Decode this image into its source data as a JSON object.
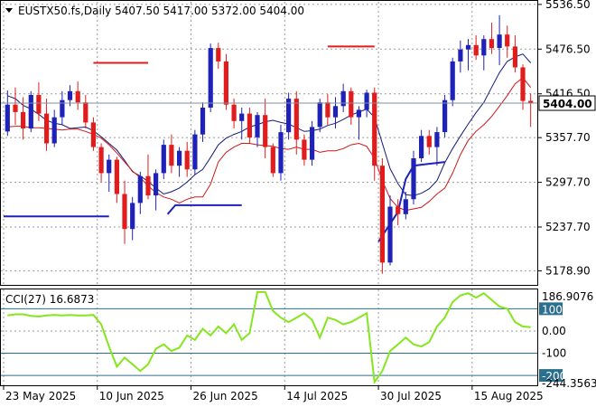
{
  "header": {
    "symbol_line": "EUSTX50.fs,Daily  5407.50 5417.00 5372.00 5404.00"
  },
  "indicator": {
    "label": "CCI(27) 16.6873"
  },
  "colors": {
    "bull": "#1e22b8",
    "bear": "#e11c1c",
    "ma_fast": "#141a7a",
    "ma_slow": "#d01818",
    "cci": "#84e61c",
    "level_line": "#2b6f8f",
    "grid": "#9a9a9a",
    "resistance": "#e11c1c",
    "support": "#1e22b8"
  },
  "chart_data": [
    {
      "type": "candlestick",
      "title": "EUSTX50.fs,Daily",
      "ylim": [
        5160,
        5540
      ],
      "y_ticks": [
        "5536.50",
        "5476.50",
        "5416.50",
        "5357.70",
        "5297.70",
        "5237.70",
        "5178.90"
      ],
      "y_tick_values": [
        5536.5,
        5476.5,
        5416.5,
        5357.7,
        5297.7,
        5237.7,
        5178.9
      ],
      "current_price": "5404.00",
      "current_price_value": 5404,
      "x_tick_labels": [
        {
          "index": 0,
          "label": "23 May 2025"
        },
        {
          "index": 12,
          "label": "10 Jun 2025"
        },
        {
          "index": 24,
          "label": "26 Jun 2025"
        },
        {
          "index": 36,
          "label": "14 Jul 2025"
        },
        {
          "index": 48,
          "label": "30 Jul 2025"
        },
        {
          "index": 60,
          "label": "15 Aug 2025"
        }
      ],
      "ohlc": [
        [
          5366,
          5421,
          5360,
          5402
        ],
        [
          5402,
          5425,
          5375,
          5392
        ],
        [
          5392,
          5412,
          5355,
          5370
        ],
        [
          5370,
          5420,
          5365,
          5415
        ],
        [
          5415,
          5432,
          5380,
          5390
        ],
        [
          5390,
          5410,
          5340,
          5350
        ],
        [
          5350,
          5395,
          5345,
          5385
        ],
        [
          5385,
          5420,
          5375,
          5408
        ],
        [
          5408,
          5428,
          5400,
          5420
        ],
        [
          5420,
          5433,
          5395,
          5405
        ],
        [
          5405,
          5415,
          5370,
          5378
        ],
        [
          5378,
          5385,
          5340,
          5345
        ],
        [
          5345,
          5350,
          5298,
          5310
        ],
        [
          5310,
          5335,
          5285,
          5328
        ],
        [
          5328,
          5332,
          5270,
          5282
        ],
        [
          5282,
          5300,
          5215,
          5235
        ],
        [
          5235,
          5278,
          5220,
          5270
        ],
        [
          5270,
          5312,
          5255,
          5306
        ],
        [
          5306,
          5335,
          5275,
          5280
        ],
        [
          5280,
          5315,
          5260,
          5310
        ],
        [
          5310,
          5355,
          5302,
          5348
        ],
        [
          5348,
          5362,
          5310,
          5320
        ],
        [
          5320,
          5345,
          5305,
          5340
        ],
        [
          5340,
          5352,
          5305,
          5315
        ],
        [
          5315,
          5368,
          5308,
          5362
        ],
        [
          5362,
          5405,
          5352,
          5398
        ],
        [
          5398,
          5484,
          5392,
          5478
        ],
        [
          5478,
          5485,
          5450,
          5460
        ],
        [
          5460,
          5470,
          5395,
          5402
        ],
        [
          5402,
          5410,
          5370,
          5380
        ],
        [
          5380,
          5398,
          5355,
          5390
        ],
        [
          5390,
          5398,
          5350,
          5358
        ],
        [
          5358,
          5392,
          5345,
          5388
        ],
        [
          5388,
          5410,
          5330,
          5345
        ],
        [
          5345,
          5350,
          5305,
          5310
        ],
        [
          5310,
          5375,
          5300,
          5365
        ],
        [
          5365,
          5418,
          5355,
          5410
        ],
        [
          5410,
          5420,
          5335,
          5355
        ],
        [
          5355,
          5362,
          5320,
          5328
        ],
        [
          5328,
          5380,
          5320,
          5372
        ],
        [
          5372,
          5410,
          5365,
          5405
        ],
        [
          5405,
          5416,
          5375,
          5385
        ],
        [
          5385,
          5412,
          5370,
          5400
        ],
        [
          5400,
          5430,
          5392,
          5420
        ],
        [
          5420,
          5425,
          5375,
          5385
        ],
        [
          5385,
          5400,
          5355,
          5395
        ],
        [
          5395,
          5422,
          5385,
          5418
        ],
        [
          5418,
          5425,
          5300,
          5320
        ],
        [
          5320,
          5330,
          5175,
          5190
        ],
        [
          5190,
          5280,
          5186,
          5265
        ],
        [
          5265,
          5275,
          5240,
          5255
        ],
        [
          5255,
          5285,
          5248,
          5275
        ],
        [
          5275,
          5340,
          5268,
          5330
        ],
        [
          5330,
          5368,
          5325,
          5360
        ],
        [
          5360,
          5368,
          5335,
          5345
        ],
        [
          5345,
          5372,
          5320,
          5365
        ],
        [
          5365,
          5415,
          5358,
          5408
        ],
        [
          5408,
          5465,
          5400,
          5460
        ],
        [
          5460,
          5488,
          5445,
          5476
        ],
        [
          5476,
          5490,
          5448,
          5482
        ],
        [
          5482,
          5495,
          5462,
          5468
        ],
        [
          5468,
          5495,
          5448,
          5490
        ],
        [
          5490,
          5512,
          5470,
          5478
        ],
        [
          5478,
          5522,
          5455,
          5496
        ],
        [
          5496,
          5508,
          5465,
          5480
        ],
        [
          5480,
          5495,
          5445,
          5452
        ],
        [
          5452,
          5456,
          5395,
          5407
        ],
        [
          5407,
          5417,
          5372,
          5404
        ]
      ],
      "moving_averages": [
        {
          "color_key": "ma_fast",
          "values": [
            5414,
            5410,
            5401,
            5396,
            5389,
            5381,
            5377,
            5375,
            5370,
            5371,
            5372,
            5367,
            5359,
            5350,
            5341,
            5327,
            5312,
            5306,
            5299,
            5290,
            5282,
            5285,
            5290,
            5298,
            5308,
            5315,
            5331,
            5348,
            5357,
            5362,
            5366,
            5372,
            5375,
            5379,
            5381,
            5378,
            5376,
            5371,
            5366,
            5367,
            5369,
            5374,
            5377,
            5382,
            5388,
            5392,
            5396,
            5385,
            5350,
            5316,
            5296,
            5281,
            5280,
            5283,
            5289,
            5300,
            5324,
            5343,
            5360,
            5376,
            5391,
            5405,
            5425,
            5445,
            5460,
            5466,
            5470,
            5458
          ]
        },
        {
          "color_key": "ma_slow",
          "values": [
            5372,
            5373,
            5373,
            5371,
            5371,
            5370,
            5369,
            5368,
            5369,
            5369,
            5366,
            5362,
            5357,
            5348,
            5337,
            5325,
            5313,
            5304,
            5293,
            5284,
            5278,
            5275,
            5270,
            5275,
            5278,
            5278,
            5295,
            5325,
            5338,
            5345,
            5350,
            5350,
            5348,
            5347,
            5346,
            5343,
            5342,
            5345,
            5342,
            5342,
            5338,
            5340,
            5340,
            5343,
            5348,
            5350,
            5346,
            5330,
            5300,
            5276,
            5264,
            5260,
            5262,
            5264,
            5272,
            5282,
            5290,
            5310,
            5335,
            5354,
            5366,
            5375,
            5386,
            5400,
            5414,
            5430,
            5438,
            5425
          ]
        }
      ],
      "resistance_segments": [
        {
          "from": 11,
          "to": 18,
          "value": 5458
        },
        {
          "from": 41,
          "to": 47,
          "value": 5480
        }
      ],
      "support_segments": [
        {
          "points": [
            [
              -0.5,
              5252
            ],
            [
              13,
              5252
            ]
          ]
        },
        {
          "points": [
            [
              20.5,
              5255
            ],
            [
              21.5,
              5267
            ],
            [
              30,
              5267
            ]
          ]
        },
        {
          "points": [
            [
              47.5,
              5218
            ],
            [
              50,
              5258
            ],
            [
              51,
              5302
            ],
            [
              52,
              5320
            ],
            [
              53.5,
              5322
            ],
            [
              56,
              5325
            ]
          ]
        }
      ]
    },
    {
      "type": "line",
      "title": "CCI(27)",
      "current_value": "16.6873",
      "ylim": [
        -244.3563,
        186.9076
      ],
      "y_ticks": [
        "186.9076",
        "100",
        "0.00",
        "-100",
        "-200",
        "-244.3563"
      ],
      "levels": [
        100,
        0,
        -100,
        -200
      ],
      "highlighted_levels": [
        "100",
        "-200"
      ],
      "values": [
        70,
        75,
        75,
        68,
        65,
        70,
        72,
        70,
        72,
        70,
        70,
        72,
        30,
        -70,
        -160,
        -120,
        -150,
        -180,
        -150,
        -80,
        -60,
        -90,
        -75,
        -20,
        -40,
        10,
        -20,
        20,
        -10,
        30,
        -40,
        -10,
        175,
        175,
        90,
        60,
        40,
        60,
        80,
        50,
        -30,
        60,
        50,
        30,
        40,
        60,
        80,
        -230,
        -180,
        -90,
        -60,
        -30,
        -60,
        -70,
        -50,
        20,
        60,
        130,
        160,
        170,
        150,
        170,
        140,
        110,
        100,
        40,
        20,
        16.6873
      ]
    }
  ]
}
